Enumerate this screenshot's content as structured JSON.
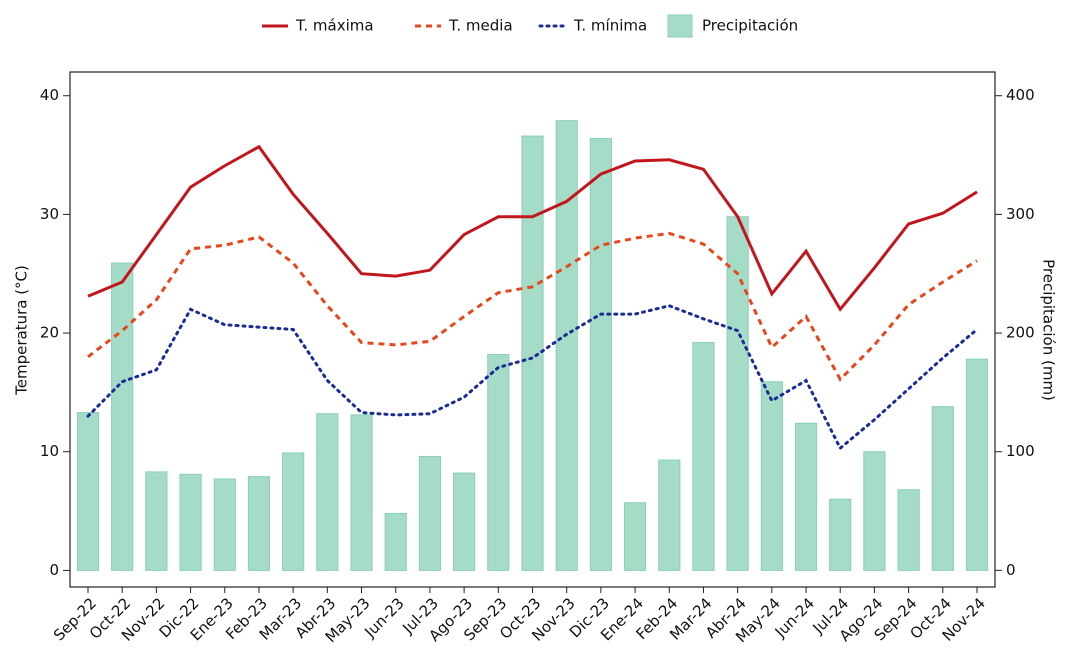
{
  "chart_data": {
    "type": "combo",
    "y_label": "Temperatura (°C)",
    "y2_label": "Precipitación (mm)",
    "categories": [
      "Sep-22",
      "Oct-22",
      "Nov-22",
      "Dic-22",
      "Ene-23",
      "Feb-23",
      "Mar-23",
      "Abr-23",
      "May-23",
      "Jun-23",
      "Jul-23",
      "Ago-23",
      "Sep-23",
      "Oct-23",
      "Nov-23",
      "Dic-23",
      "Ene-24",
      "Feb-24",
      "Mar-24",
      "Abr-24",
      "May-24",
      "Jun-24",
      "Jul-24",
      "Ago-24",
      "Sep-24",
      "Oct-24",
      "Nov-24"
    ],
    "ylim": [
      -1.4,
      42
    ],
    "yticks": [
      0,
      10,
      20,
      30,
      40
    ],
    "y2lim": [
      -14,
      420
    ],
    "y2ticks": [
      0,
      100,
      200,
      300,
      400
    ],
    "series": [
      {
        "name": "T. máxima",
        "type": "line",
        "style": "solid",
        "color": "#c3161c",
        "values": [
          23.1,
          24.3,
          28.3,
          32.3,
          34.1,
          35.7,
          31.7,
          28.4,
          25.0,
          24.8,
          25.3,
          28.3,
          29.8,
          29.8,
          31.1,
          33.4,
          34.5,
          34.6,
          33.8,
          29.8,
          23.3,
          26.9,
          22.0,
          25.5,
          29.2,
          30.1,
          31.9
        ]
      },
      {
        "name": "T. media",
        "type": "line",
        "style": "dashed",
        "color": "#e8461c",
        "values": [
          18.0,
          20.2,
          22.8,
          27.1,
          27.4,
          28.1,
          25.9,
          22.3,
          19.2,
          19.0,
          19.3,
          21.4,
          23.4,
          23.9,
          25.6,
          27.4,
          28.0,
          28.4,
          27.5,
          25.0,
          18.8,
          21.4,
          16.1,
          19.0,
          22.4,
          24.3,
          26.1
        ]
      },
      {
        "name": "T. mínima",
        "type": "line",
        "style": "dotted",
        "color": "#1c2c96",
        "values": [
          13.0,
          15.9,
          16.9,
          22.0,
          20.7,
          20.5,
          20.3,
          16.0,
          13.3,
          13.1,
          13.2,
          14.6,
          17.1,
          17.9,
          19.9,
          21.6,
          21.6,
          22.3,
          21.2,
          20.2,
          14.3,
          16.0,
          10.3,
          12.7,
          15.3,
          17.9,
          20.3
        ]
      },
      {
        "name": "Precipitación",
        "type": "bar",
        "axis": "y2",
        "color": "#a5dcc8",
        "values": [
          133,
          259,
          83,
          81,
          77,
          79,
          99,
          132,
          131,
          48,
          96,
          82,
          182,
          366,
          379,
          364,
          57,
          93,
          192,
          298,
          159,
          124,
          60,
          100,
          68,
          138,
          178
        ]
      }
    ]
  }
}
